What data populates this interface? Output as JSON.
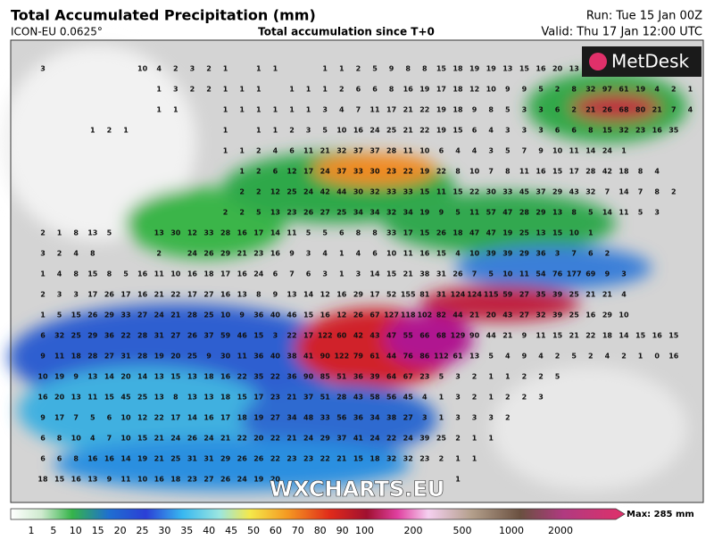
{
  "header": {
    "title": "Total Accumulated Precipitation (mm)",
    "model": "ICON-EU 0.0625°",
    "subtitle": "Total accumulation since T+0",
    "run": "Run: Tue 15 Jan 00Z",
    "valid": "Valid: Thu 17 Jan 12:00 UTC"
  },
  "logo": "MetDesk",
  "watermark": "WXCHARTS.EU",
  "map": {
    "rows": [
      [
        3,
        null,
        null,
        null,
        null,
        null,
        10,
        4,
        2,
        3,
        2,
        1,
        null,
        1,
        1,
        null,
        null,
        1,
        1,
        2,
        5,
        9,
        8,
        8,
        15,
        18,
        19,
        19,
        13,
        15,
        16,
        20,
        13,
        21
      ],
      [
        null,
        null,
        null,
        null,
        null,
        null,
        null,
        1,
        3,
        2,
        2,
        1,
        1,
        1,
        null,
        1,
        1,
        1,
        2,
        6,
        6,
        8,
        16,
        19,
        17,
        18,
        12,
        10,
        9,
        9,
        5,
        2,
        8,
        32,
        97,
        61,
        19,
        4,
        2,
        1
      ],
      [
        null,
        null,
        null,
        null,
        null,
        null,
        null,
        1,
        1,
        null,
        null,
        1,
        1,
        1,
        1,
        1,
        1,
        3,
        4,
        7,
        11,
        17,
        21,
        22,
        19,
        18,
        9,
        8,
        5,
        3,
        3,
        6,
        2,
        21,
        26,
        68,
        80,
        21,
        7,
        4
      ],
      [
        null,
        null,
        null,
        1,
        2,
        1,
        null,
        null,
        null,
        null,
        null,
        1,
        null,
        1,
        1,
        2,
        3,
        5,
        10,
        16,
        24,
        25,
        21,
        22,
        19,
        15,
        6,
        4,
        3,
        3,
        3,
        6,
        6,
        8,
        15,
        32,
        23,
        16,
        35
      ],
      [
        null,
        null,
        null,
        null,
        null,
        null,
        null,
        null,
        null,
        null,
        null,
        1,
        1,
        2,
        4,
        6,
        11,
        21,
        32,
        37,
        37,
        28,
        11,
        10,
        6,
        4,
        4,
        3,
        5,
        7,
        9,
        10,
        11,
        14,
        24,
        1
      ],
      [
        null,
        null,
        null,
        null,
        null,
        null,
        null,
        null,
        null,
        null,
        null,
        null,
        1,
        2,
        6,
        12,
        17,
        24,
        37,
        33,
        30,
        23,
        22,
        19,
        22,
        8,
        10,
        7,
        8,
        11,
        16,
        15,
        17,
        28,
        42,
        18,
        8,
        4
      ],
      [
        null,
        null,
        null,
        null,
        null,
        null,
        null,
        null,
        null,
        null,
        null,
        null,
        2,
        2,
        12,
        25,
        24,
        42,
        44,
        30,
        32,
        33,
        33,
        15,
        11,
        15,
        22,
        30,
        33,
        45,
        37,
        29,
        43,
        32,
        7,
        14,
        7,
        8,
        2
      ],
      [
        null,
        null,
        null,
        null,
        null,
        null,
        null,
        null,
        null,
        null,
        null,
        2,
        2,
        5,
        13,
        23,
        26,
        27,
        25,
        34,
        34,
        32,
        34,
        19,
        9,
        5,
        11,
        57,
        47,
        28,
        29,
        13,
        8,
        5,
        14,
        11,
        5,
        3
      ],
      [
        2,
        1,
        8,
        13,
        5,
        null,
        null,
        13,
        30,
        12,
        33,
        28,
        16,
        17,
        14,
        11,
        5,
        5,
        6,
        8,
        8,
        33,
        17,
        15,
        26,
        18,
        47,
        47,
        19,
        25,
        13,
        15,
        10,
        1
      ],
      [
        3,
        2,
        4,
        8,
        null,
        null,
        null,
        2,
        null,
        24,
        26,
        29,
        21,
        23,
        16,
        9,
        3,
        4,
        1,
        4,
        6,
        10,
        11,
        16,
        15,
        4,
        10,
        39,
        39,
        29,
        36,
        3,
        7,
        6,
        2
      ],
      [
        1,
        4,
        8,
        15,
        8,
        5,
        16,
        11,
        10,
        16,
        18,
        17,
        16,
        24,
        6,
        7,
        6,
        3,
        1,
        3,
        14,
        15,
        21,
        38,
        31,
        26,
        7,
        5,
        10,
        11,
        54,
        76,
        177,
        69,
        9,
        3
      ],
      [
        2,
        3,
        3,
        17,
        26,
        17,
        16,
        21,
        22,
        17,
        27,
        16,
        13,
        8,
        9,
        13,
        14,
        12,
        16,
        29,
        17,
        52,
        155,
        81,
        31,
        124,
        124,
        115,
        59,
        27,
        35,
        39,
        25,
        21,
        21,
        4
      ],
      [
        1,
        5,
        15,
        26,
        29,
        33,
        27,
        24,
        21,
        28,
        25,
        10,
        9,
        36,
        40,
        46,
        15,
        16,
        12,
        26,
        67,
        127,
        118,
        102,
        82,
        44,
        21,
        20,
        43,
        27,
        32,
        39,
        25,
        16,
        29,
        10
      ],
      [
        6,
        32,
        25,
        29,
        36,
        22,
        28,
        31,
        27,
        26,
        37,
        59,
        46,
        15,
        3,
        22,
        17,
        122,
        60,
        42,
        43,
        47,
        55,
        66,
        68,
        129,
        90,
        44,
        21,
        9,
        11,
        15,
        21,
        22,
        18,
        14,
        15,
        16,
        15
      ],
      [
        9,
        11,
        18,
        28,
        27,
        31,
        28,
        19,
        20,
        25,
        9,
        30,
        11,
        36,
        40,
        38,
        41,
        90,
        122,
        79,
        61,
        44,
        76,
        86,
        112,
        61,
        13,
        5,
        4,
        9,
        4,
        2,
        5,
        2,
        4,
        2,
        1,
        0,
        16
      ],
      [
        10,
        19,
        9,
        13,
        14,
        20,
        14,
        13,
        15,
        13,
        18,
        16,
        22,
        35,
        22,
        36,
        90,
        85,
        51,
        36,
        39,
        64,
        67,
        23,
        5,
        3,
        2,
        1,
        1,
        2,
        2,
        5
      ],
      [
        16,
        20,
        13,
        11,
        15,
        45,
        25,
        13,
        8,
        13,
        13,
        18,
        15,
        17,
        23,
        21,
        37,
        51,
        28,
        43,
        58,
        56,
        45,
        4,
        1,
        3,
        2,
        1,
        2,
        2,
        3
      ],
      [
        9,
        17,
        7,
        5,
        6,
        10,
        12,
        22,
        17,
        14,
        16,
        17,
        18,
        19,
        27,
        34,
        48,
        33,
        56,
        36,
        34,
        38,
        27,
        3,
        1,
        3,
        3,
        3,
        2
      ],
      [
        6,
        8,
        10,
        4,
        7,
        10,
        15,
        21,
        24,
        26,
        24,
        21,
        22,
        20,
        22,
        21,
        24,
        29,
        37,
        41,
        24,
        22,
        24,
        39,
        25,
        2,
        1,
        1
      ],
      [
        6,
        6,
        8,
        16,
        16,
        14,
        19,
        21,
        25,
        31,
        31,
        29,
        26,
        26,
        22,
        23,
        23,
        22,
        21,
        15,
        18,
        32,
        32,
        23,
        2,
        1,
        1
      ],
      [
        18,
        15,
        16,
        13,
        9,
        11,
        10,
        16,
        18,
        23,
        27,
        26,
        24,
        19,
        20,
        null,
        null,
        null,
        null,
        null,
        null,
        null,
        null,
        null,
        null,
        1
      ]
    ]
  },
  "legend": {
    "labels": [
      1,
      5,
      10,
      15,
      20,
      25,
      30,
      35,
      40,
      45,
      50,
      60,
      70,
      80,
      90,
      100,
      200,
      500,
      1000,
      2000
    ],
    "max": "Max: 285 mm"
  }
}
